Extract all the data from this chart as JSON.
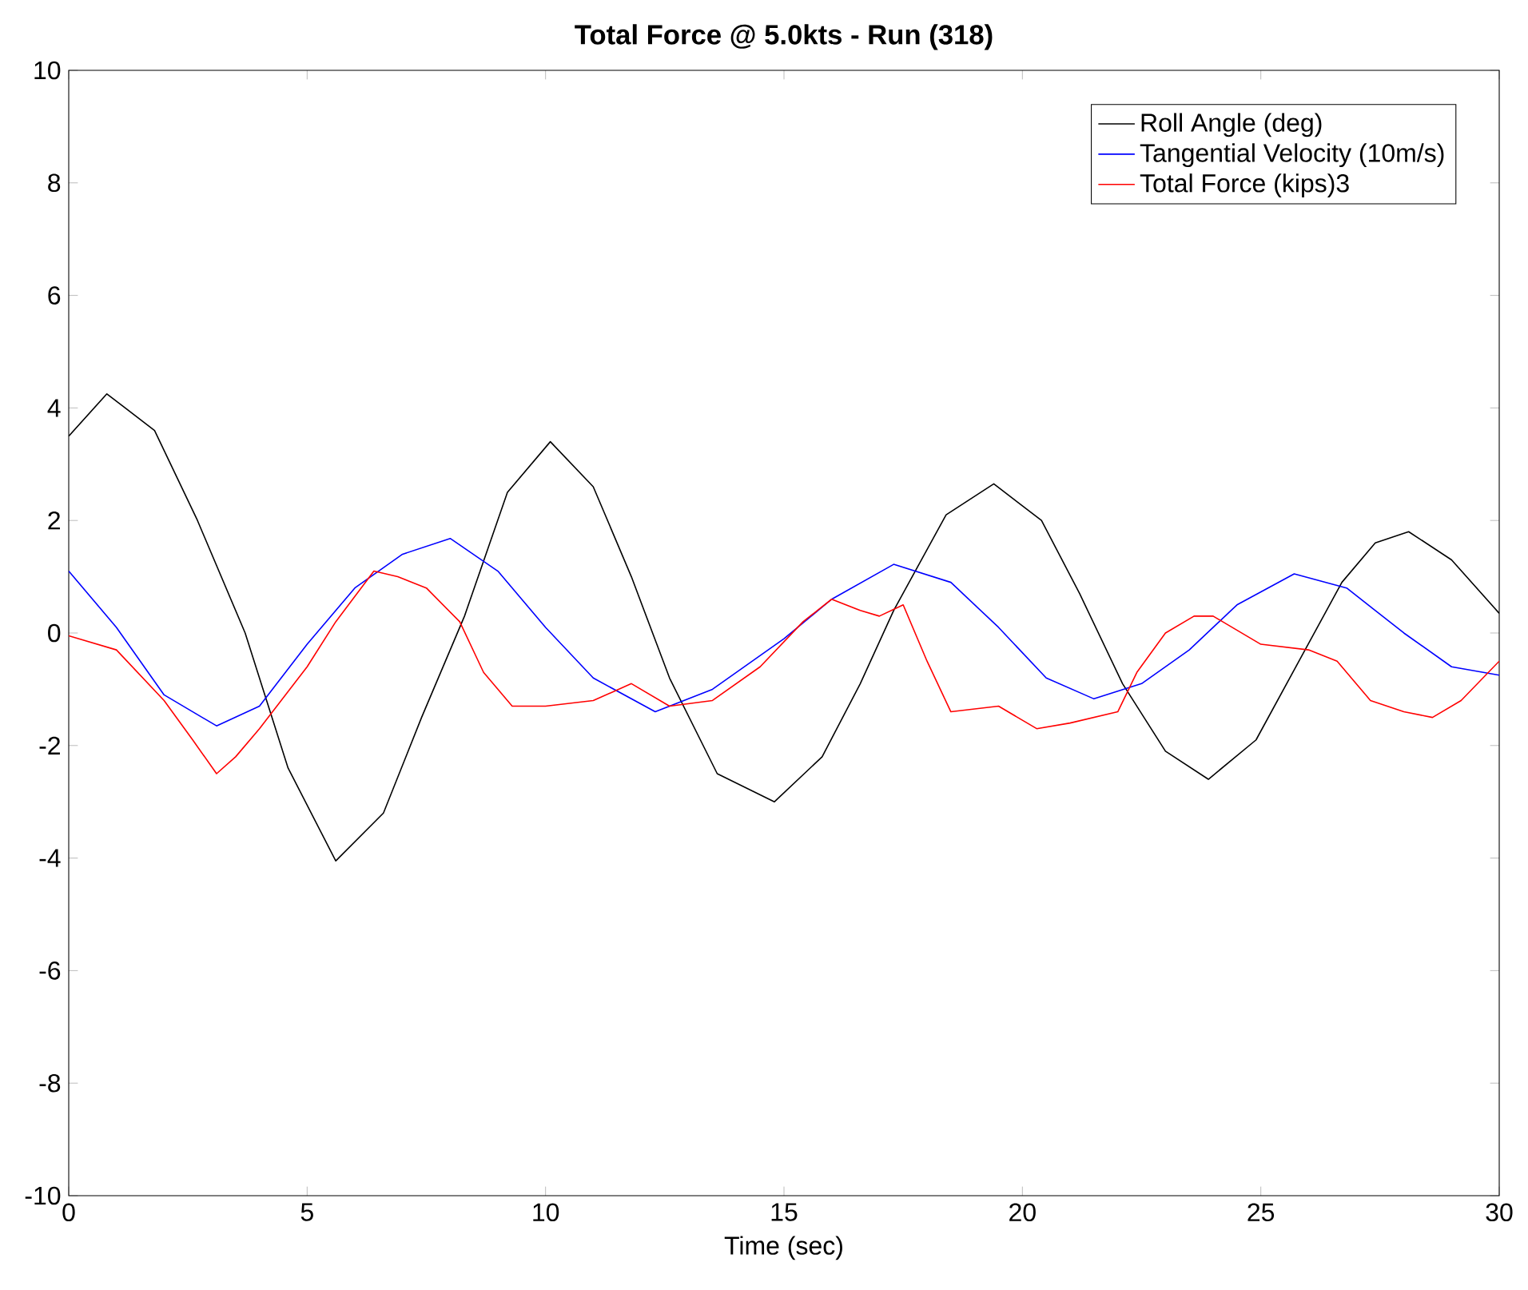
{
  "chart_data": {
    "type": "line",
    "title": "Total Force @ 5.0kts - Run (318)",
    "xlabel": "Time (sec)",
    "xlim": [
      0,
      30
    ],
    "ylim": [
      -10,
      10
    ],
    "xticks": [
      0,
      5,
      10,
      15,
      20,
      25,
      30
    ],
    "yticks": [
      -10,
      -8,
      -6,
      -4,
      -2,
      0,
      2,
      4,
      6,
      8,
      10
    ],
    "grid": false,
    "legend": "top right",
    "series": [
      {
        "name": "Roll Angle (deg)",
        "color": "#000000",
        "x": [
          0,
          0.8,
          1.8,
          2.7,
          3.7,
          4.6,
          5.6,
          6.6,
          7.4,
          8.3,
          9.2,
          10.1,
          11.0,
          11.8,
          12.6,
          13.6,
          14.8,
          15.8,
          16.6,
          17.3,
          18.4,
          19.4,
          20.4,
          21.2,
          22.1,
          23.0,
          23.9,
          24.9,
          25.8,
          26.7,
          27.4,
          28.1,
          29.0,
          30
        ],
        "values": [
          3.5,
          4.25,
          3.6,
          2.0,
          0,
          -2.4,
          -4.05,
          -3.2,
          -1.5,
          0.3,
          2.5,
          3.4,
          2.6,
          1.0,
          -0.8,
          -2.5,
          -3.0,
          -2.2,
          -0.9,
          0.4,
          2.1,
          2.65,
          2.0,
          0.7,
          -0.9,
          -2.1,
          -2.6,
          -1.9,
          -0.5,
          0.9,
          1.6,
          1.8,
          1.3,
          0.35
        ]
      },
      {
        "name": "Tangential Velocity (10m/s)",
        "color": "#0000ff",
        "x": [
          0,
          1,
          2,
          3.1,
          4,
          5,
          6,
          7,
          8,
          9,
          10,
          11,
          12.3,
          13.5,
          15,
          16,
          17.3,
          18.5,
          19.5,
          20.5,
          21.5,
          22.5,
          23.5,
          24.5,
          25.7,
          26.8,
          28,
          29,
          30
        ],
        "values": [
          1.1,
          0.1,
          -1.1,
          -1.65,
          -1.3,
          -0.2,
          0.8,
          1.4,
          1.68,
          1.1,
          0.1,
          -0.8,
          -1.4,
          -1.0,
          -0.1,
          0.6,
          1.22,
          0.9,
          0.1,
          -0.8,
          -1.17,
          -0.9,
          -0.3,
          0.5,
          1.05,
          0.8,
          0.0,
          -0.6,
          -0.75
        ]
      },
      {
        "name": "Total Force (kips)3",
        "color": "#ff0000",
        "x": [
          0,
          1,
          2,
          2.6,
          3.1,
          3.5,
          4,
          5,
          5.6,
          6.4,
          6.9,
          7.5,
          8.2,
          8.7,
          9.3,
          10,
          11,
          11.8,
          12.6,
          13.5,
          14.5,
          15.4,
          16,
          16.6,
          17,
          17.5,
          18,
          18.5,
          19.5,
          20.3,
          21,
          22,
          22.4,
          23,
          23.6,
          24,
          25,
          26,
          26.6,
          27.3,
          28,
          28.6,
          29.2,
          30
        ],
        "values": [
          -0.05,
          -0.3,
          -1.2,
          -1.9,
          -2.5,
          -2.2,
          -1.7,
          -0.6,
          0.2,
          1.1,
          1.0,
          0.8,
          0.2,
          -0.7,
          -1.3,
          -1.3,
          -1.2,
          -0.9,
          -1.3,
          -1.2,
          -0.6,
          0.2,
          0.6,
          0.4,
          0.3,
          0.5,
          -0.5,
          -1.4,
          -1.3,
          -1.7,
          -1.6,
          -1.4,
          -0.7,
          0,
          0.3,
          0.3,
          -0.2,
          -0.3,
          -0.5,
          -1.2,
          -1.4,
          -1.5,
          -1.2,
          -0.5
        ]
      }
    ]
  }
}
